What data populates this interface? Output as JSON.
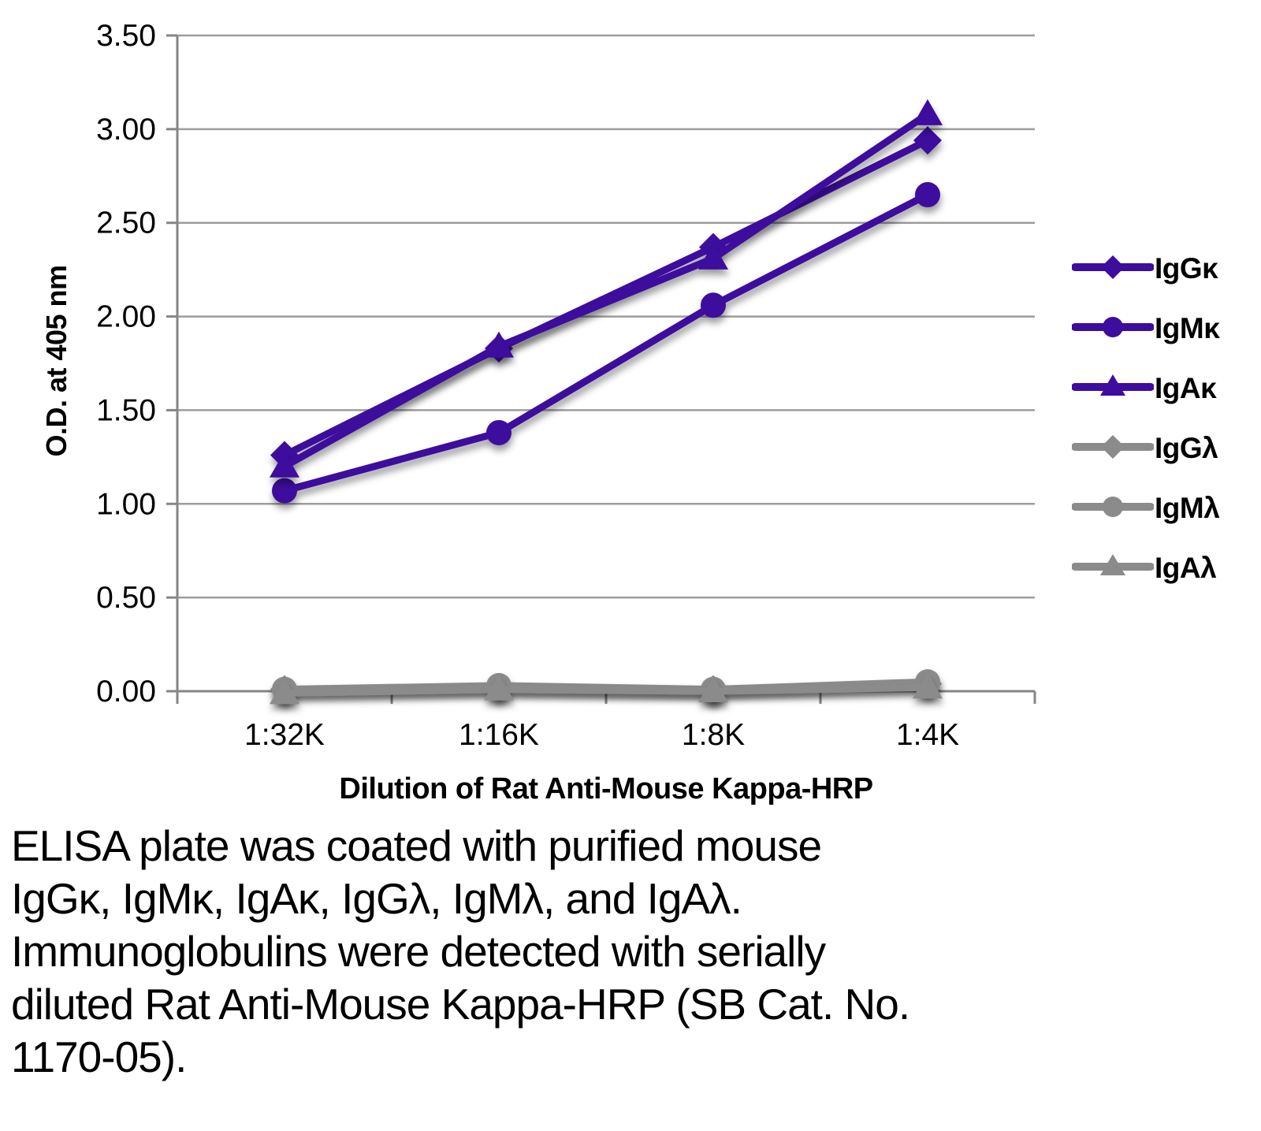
{
  "figure": {
    "y_axis_title": "O.D. at 405 nm",
    "x_axis_title": "Dilution of Rat Anti-Mouse Kappa-HRP",
    "caption_lines": [
      "ELISA plate was coated with purified mouse",
      "IgGκ, IgMκ, IgAκ, IgGλ, IgMλ, and IgAλ.",
      "Immunoglobulins were detected with serially",
      "diluted Rat Anti-Mouse Kappa-HRP (SB Cat. No.",
      "1170-05)."
    ]
  },
  "colors": {
    "kappa_series": "#3E0D9D",
    "lambda_series": "#8B8B8B",
    "gridline": "#9D9D9D",
    "axis": "#868686",
    "text": "#000000"
  },
  "chart_data": {
    "type": "line",
    "title": "",
    "xlabel": "Dilution of Rat Anti-Mouse Kappa-HRP",
    "ylabel": "O.D. at 405 nm",
    "categories": [
      "1:32K",
      "1:16K",
      "1:8K",
      "1:4K"
    ],
    "series": [
      {
        "name": "IgGκ",
        "marker": "diamond",
        "color": "#3E0D9D",
        "values": [
          1.26,
          1.83,
          2.37,
          2.94
        ]
      },
      {
        "name": "IgMκ",
        "marker": "circle",
        "color": "#3E0D9D",
        "values": [
          1.07,
          1.38,
          2.06,
          2.65
        ]
      },
      {
        "name": "IgAκ",
        "marker": "triangle",
        "color": "#3E0D9D",
        "values": [
          1.2,
          1.84,
          2.31,
          3.08
        ]
      },
      {
        "name": "IgGλ",
        "marker": "diamond",
        "color": "#8B8B8B",
        "values": [
          0.01,
          0.02,
          0.01,
          0.04
        ]
      },
      {
        "name": "IgMλ",
        "marker": "circle",
        "color": "#8B8B8B",
        "values": [
          0.01,
          0.03,
          0.01,
          0.05
        ]
      },
      {
        "name": "IgAλ",
        "marker": "triangle",
        "color": "#8B8B8B",
        "values": [
          -0.01,
          0.01,
          0.0,
          0.02
        ]
      }
    ],
    "ylim": [
      0,
      3.5
    ],
    "ytick_step": 0.5,
    "ytick_labels": [
      "0.00",
      "0.50",
      "1.00",
      "1.50",
      "2.00",
      "2.50",
      "3.00",
      "3.50"
    ],
    "grid": true,
    "legend_position": "right"
  }
}
